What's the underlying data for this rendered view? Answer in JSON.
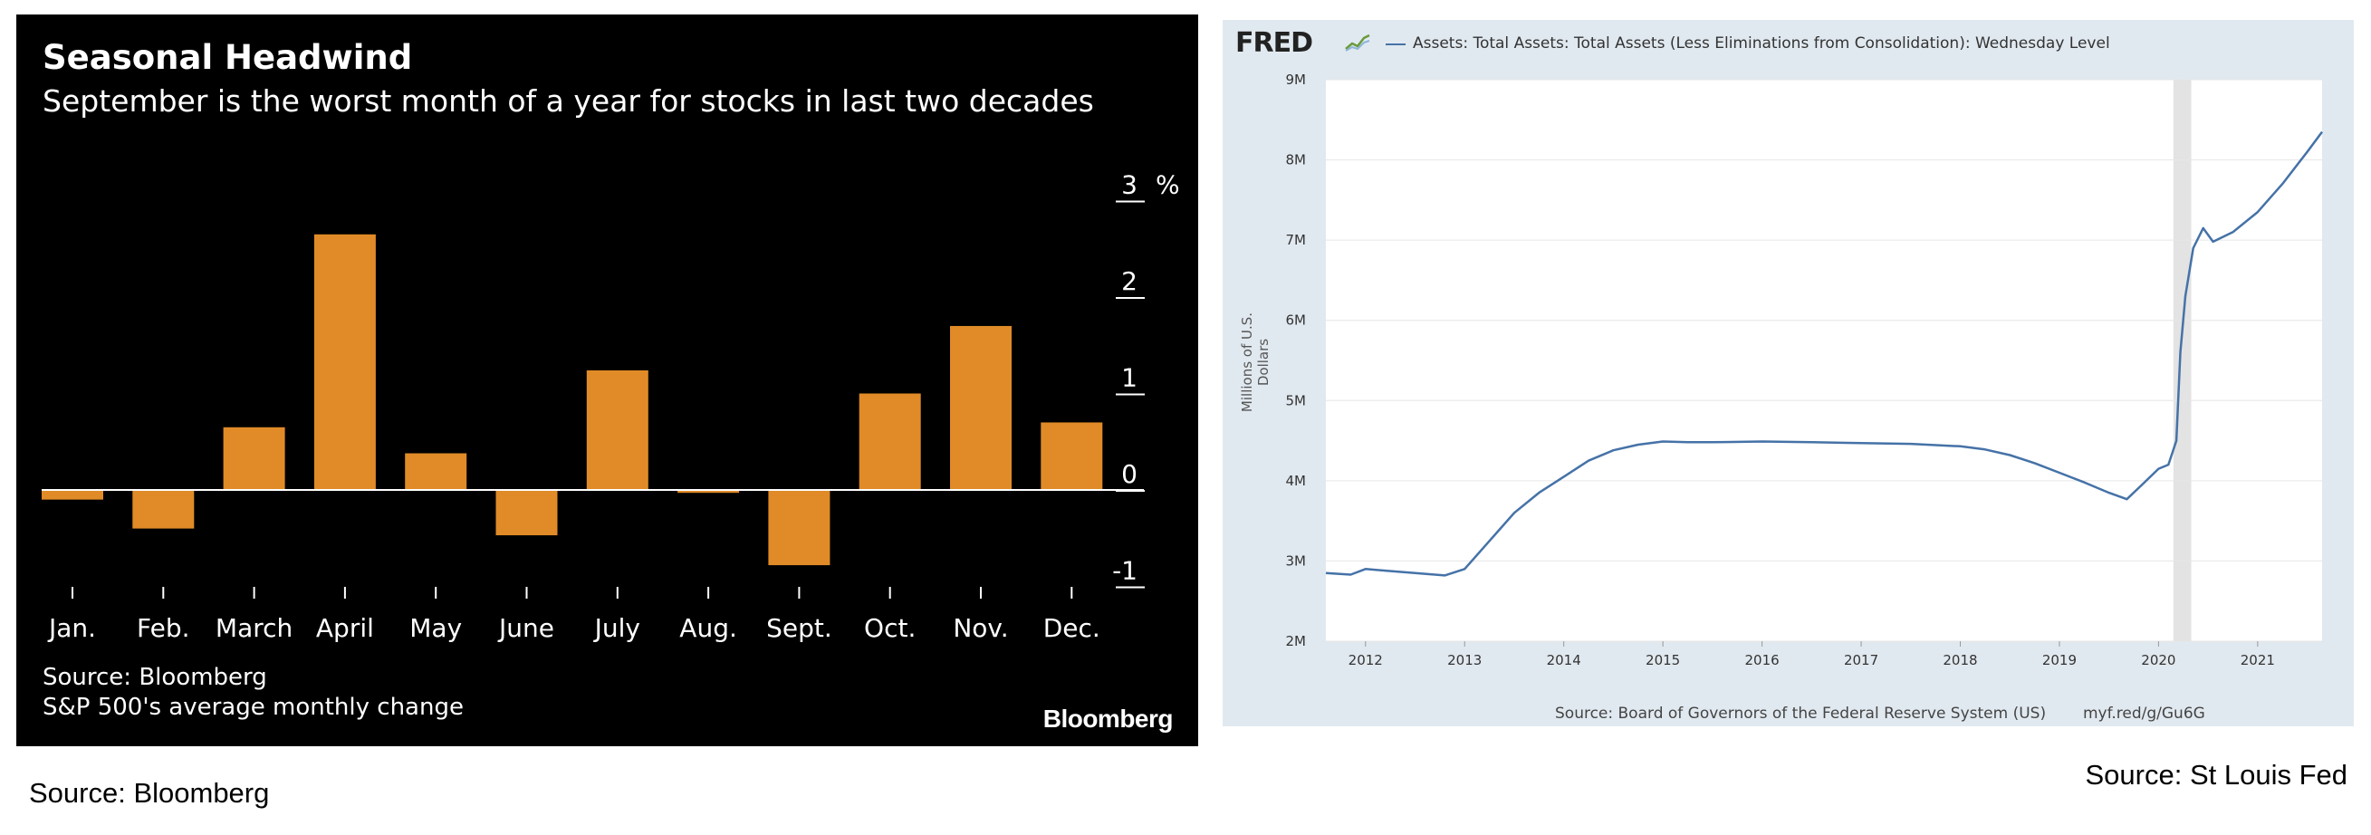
{
  "chart_data": [
    {
      "type": "bar",
      "title": "Seasonal Headwind",
      "subtitle": "September is the worst month of a year for stocks in last two decades",
      "categories": [
        "Jan.",
        "Feb.",
        "March",
        "April",
        "May",
        "June",
        "July",
        "Aug.",
        "Sept.",
        "Oct.",
        "Nov.",
        "Dec."
      ],
      "values": [
        -0.1,
        -0.4,
        0.65,
        2.65,
        0.38,
        -0.47,
        1.24,
        -0.03,
        -0.78,
        1.0,
        1.7,
        0.7
      ],
      "ylim": [
        -1,
        3
      ],
      "yticks": [
        3,
        2,
        1,
        0,
        -1
      ],
      "yunit": "%",
      "bar_color": "#e08b27",
      "background": "#000000",
      "source": "Source: Bloomberg",
      "note": "S&P 500's average monthly change",
      "logo": "Bloomberg"
    },
    {
      "type": "line",
      "legend": "Assets: Total Assets: Total Assets (Less Eliminations from Consolidation): Wednesday Level",
      "ylabel": "Millions of U.S. Dollars",
      "yticks": [
        "9M",
        "8M",
        "7M",
        "6M",
        "5M",
        "4M",
        "3M",
        "2M"
      ],
      "ytick_values": [
        9,
        8,
        7,
        6,
        5,
        4,
        3,
        2
      ],
      "xticks": [
        "2012",
        "2013",
        "2014",
        "2015",
        "2016",
        "2017",
        "2018",
        "2019",
        "2020",
        "2021"
      ],
      "xlim": [
        2011.6,
        2021.65
      ],
      "ylim": [
        2,
        9
      ],
      "line_color": "#4572a7",
      "recession_band": [
        2020.15,
        2020.33
      ],
      "series": [
        {
          "x": [
            2011.6,
            2011.85,
            2012.0,
            2012.2,
            2012.5,
            2012.8,
            2013.0,
            2013.25,
            2013.5,
            2013.75,
            2014.0,
            2014.25,
            2014.5,
            2014.75,
            2015.0,
            2015.25,
            2015.5,
            2016.0,
            2016.5,
            2017.0,
            2017.5,
            2018.0,
            2018.25,
            2018.5,
            2018.75,
            2019.0,
            2019.25,
            2019.5,
            2019.68,
            2019.85,
            2020.0,
            2020.1,
            2020.18,
            2020.22,
            2020.27,
            2020.35,
            2020.45,
            2020.55,
            2020.75,
            2021.0,
            2021.25,
            2021.5,
            2021.65
          ],
          "y": [
            2.85,
            2.83,
            2.9,
            2.88,
            2.85,
            2.82,
            2.9,
            3.25,
            3.6,
            3.85,
            4.05,
            4.25,
            4.38,
            4.45,
            4.49,
            4.48,
            4.48,
            4.49,
            4.48,
            4.47,
            4.46,
            4.43,
            4.39,
            4.32,
            4.22,
            4.1,
            3.98,
            3.85,
            3.77,
            3.97,
            4.15,
            4.2,
            4.5,
            5.6,
            6.3,
            6.9,
            7.15,
            6.98,
            7.1,
            7.35,
            7.7,
            8.1,
            8.35
          ]
        }
      ],
      "source": "Source: Board of Governors of the Federal Reserve System (US)",
      "link": "myf.red/g/Gu6G",
      "logo": "FRED"
    }
  ],
  "captions": {
    "left": "Source: Bloomberg",
    "right": "Source: St Louis Fed"
  }
}
